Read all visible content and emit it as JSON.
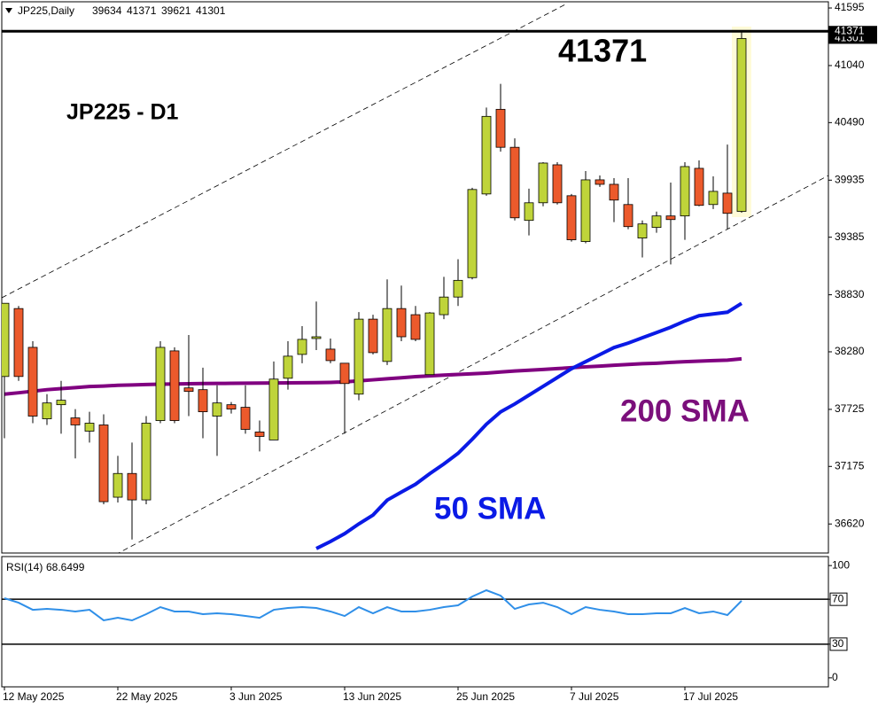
{
  "chart_data": [
    {
      "type": "candlestick",
      "title": "JP225,Daily",
      "categories": [
        "12 May 2025",
        null,
        null,
        null,
        null,
        null,
        null,
        null,
        "22 May 2025",
        null,
        null,
        null,
        null,
        null,
        null,
        null,
        "3 Jun 2025",
        null,
        null,
        null,
        null,
        null,
        null,
        null,
        "13 Jun 2025",
        null,
        null,
        null,
        null,
        null,
        null,
        null,
        "25 Jun 2025",
        null,
        null,
        null,
        null,
        null,
        null,
        null,
        "7 Jul 2025",
        null,
        null,
        null,
        null,
        null,
        null,
        null,
        "17 Jul 2025",
        null,
        null,
        null,
        null
      ],
      "open": [
        38042,
        38697,
        38323,
        37634,
        37770,
        37643,
        37515,
        37575,
        36878,
        37107,
        36852,
        37617,
        38289,
        37932,
        37915,
        37660,
        37770,
        37745,
        37507,
        37430,
        38025,
        38255,
        38408,
        38306,
        38170,
        37872,
        38595,
        38187,
        38697,
        38638,
        38060,
        38638,
        38808,
        38995,
        39802,
        40618,
        40252,
        39547,
        39717,
        40083,
        39785,
        39343,
        39938,
        39895,
        39700,
        39377,
        39479,
        39590,
        39590,
        40049,
        39700,
        39810,
        39634
      ],
      "high": [
        38748,
        38722,
        38382,
        37872,
        38000,
        37728,
        37702,
        37677,
        37277,
        37405,
        37660,
        38382,
        38323,
        38442,
        38127,
        37957,
        37796,
        37957,
        37617,
        38187,
        38382,
        38527,
        38765,
        38408,
        38170,
        38663,
        38638,
        38978,
        38918,
        38722,
        38663,
        39003,
        39173,
        39862,
        40635,
        40864,
        40338,
        39853,
        40108,
        40108,
        39802,
        40023,
        39980,
        39955,
        39955,
        39547,
        39632,
        39912,
        40108,
        40125,
        39972,
        40278,
        41371
      ],
      "low": [
        37447,
        38000,
        37592,
        37575,
        37490,
        37252,
        37405,
        36810,
        36827,
        36470,
        36810,
        37592,
        37592,
        37660,
        37447,
        37277,
        37685,
        37490,
        37320,
        37430,
        37915,
        38170,
        38297,
        38170,
        37490,
        37813,
        38255,
        38153,
        38382,
        38382,
        38060,
        38595,
        38722,
        38978,
        39785,
        40210,
        39547,
        39402,
        39683,
        39700,
        39343,
        39326,
        39870,
        39530,
        39462,
        39190,
        39428,
        39122,
        39360,
        39683,
        39657,
        39462,
        39621
      ],
      "close": [
        38748,
        38042,
        37660,
        37787,
        37813,
        37575,
        37592,
        36835,
        37107,
        36852,
        37592,
        38323,
        37617,
        37898,
        37702,
        37787,
        37728,
        37532,
        37464,
        38017,
        38238,
        38400,
        38425,
        38195,
        37974,
        38595,
        38272,
        38697,
        38425,
        38400,
        38655,
        38808,
        38969,
        39845,
        40550,
        40252,
        39572,
        39717,
        40100,
        39717,
        39360,
        39938,
        39895,
        39743,
        39487,
        39513,
        39590,
        39555,
        40066,
        39692,
        39827,
        39615,
        41301
      ],
      "up_color": "#bfd43a",
      "down_color": "#ec5a2c",
      "series": [
        {
          "name": "200 SMA",
          "color": "#800080",
          "values": [
            37872,
            37885,
            37900,
            37915,
            37925,
            37935,
            37945,
            37950,
            37957,
            37960,
            37965,
            37968,
            37970,
            37972,
            37974,
            37975,
            37976,
            37977,
            37978,
            37980,
            37981,
            37982,
            37983,
            37985,
            37990,
            38000,
            38010,
            38020,
            38030,
            38040,
            38048,
            38055,
            38062,
            38068,
            38075,
            38085,
            38095,
            38102,
            38110,
            38118,
            38127,
            38135,
            38142,
            38150,
            38158,
            38165,
            38170,
            38178,
            38185,
            38190,
            38195,
            38200,
            38212
          ]
        },
        {
          "name": "50 SMA",
          "color": "#0a1ae6",
          "values": [
            null,
            null,
            null,
            null,
            null,
            null,
            null,
            null,
            null,
            null,
            null,
            null,
            null,
            null,
            null,
            null,
            null,
            null,
            null,
            null,
            null,
            null,
            36383,
            36451,
            36527,
            36621,
            36706,
            36850,
            36927,
            37003,
            37105,
            37199,
            37301,
            37437,
            37582,
            37701,
            37777,
            37862,
            37947,
            38032,
            38117,
            38185,
            38253,
            38321,
            38364,
            38415,
            38466,
            38517,
            38577,
            38628,
            38645,
            38662,
            38747
          ]
        }
      ],
      "annotations": [
        "JP225 - D1"
      ],
      "ylim": [
        36340,
        41655
      ],
      "yticks": [
        36620,
        37175,
        37725,
        38280,
        38830,
        39385,
        39935,
        40490,
        41040,
        41595
      ]
    },
    {
      "type": "line",
      "title": "RSI(14)",
      "color": "#2f8fe8",
      "values": [
        70.9,
        66.9,
        60.6,
        61.4,
        60.6,
        59.1,
        60.6,
        51.2,
        53.5,
        51.2,
        56.7,
        63.0,
        59.1,
        59.1,
        56.7,
        57.5,
        56.7,
        55.1,
        53.5,
        60.6,
        62.2,
        63.0,
        62.2,
        59.1,
        55.1,
        63.0,
        57.5,
        63.0,
        59.1,
        59.1,
        60.6,
        63.0,
        64.6,
        72.4,
        78.0,
        73.2,
        61.4,
        65.4,
        66.9,
        63.0,
        56.7,
        63.0,
        60.6,
        59.1,
        56.7,
        56.7,
        57.5,
        57.5,
        62.2,
        57.5,
        59.1,
        55.9,
        68.6499
      ],
      "ylim": [
        -8,
        108
      ],
      "yticks": [
        0,
        30,
        70,
        100
      ],
      "levels": [
        30,
        70
      ]
    }
  ]
}
